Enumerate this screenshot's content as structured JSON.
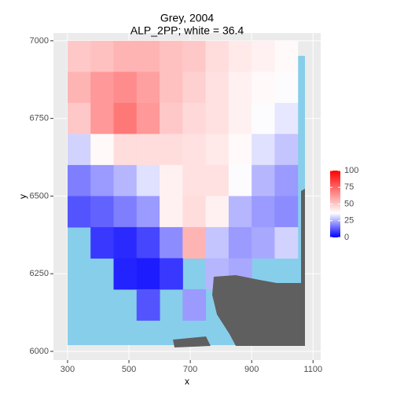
{
  "chart_data": {
    "type": "heatmap",
    "title": "Grey, 2004",
    "subtitle": "ALP_2PP; white = 36.4",
    "x_label": "x",
    "y_label": "y",
    "xlim": [
      254,
      1125
    ],
    "ylim": [
      5972,
      7025
    ],
    "xticks": [
      300,
      500,
      700,
      900,
      1100
    ],
    "yticks": [
      6000,
      6250,
      6500,
      6750,
      7000
    ],
    "grid": true,
    "x": [
      337.5,
      412.5,
      487.5,
      562.5,
      637.5,
      712.5,
      787.5,
      862.5,
      937.5,
      1012.5
    ],
    "y": [
      6950,
      6850,
      6750,
      6650,
      6550,
      6450,
      6350,
      6250,
      6150,
      6050
    ],
    "values": [
      [
        50,
        52,
        55,
        55,
        52,
        50,
        45,
        42,
        40,
        38
      ],
      [
        55,
        62,
        65,
        60,
        52,
        48,
        44,
        40,
        38,
        36
      ],
      [
        50,
        62,
        70,
        62,
        50,
        46,
        44,
        40,
        36,
        33
      ],
      [
        30,
        38,
        45,
        45,
        45,
        44,
        42,
        38,
        32,
        28
      ],
      [
        18,
        22,
        26,
        32,
        40,
        44,
        44,
        36,
        26,
        22
      ],
      [
        12,
        14,
        18,
        22,
        40,
        45,
        40,
        26,
        22,
        20
      ],
      [
        null,
        8,
        6,
        10,
        20,
        55,
        28,
        22,
        24,
        30
      ],
      [
        null,
        null,
        5,
        4,
        8,
        null,
        26,
        24,
        null,
        null
      ],
      [
        null,
        null,
        null,
        12,
        null,
        22,
        null,
        null,
        null,
        null
      ],
      [
        null,
        null,
        null,
        null,
        null,
        null,
        null,
        null,
        null,
        null
      ]
    ],
    "colorbar": {
      "limits": [
        0,
        100
      ],
      "midpoint": 36.4,
      "ticks": [
        0,
        25,
        50,
        75,
        100
      ],
      "colors": [
        "#0000ff",
        "#ffffff",
        "#ff0000"
      ]
    }
  }
}
